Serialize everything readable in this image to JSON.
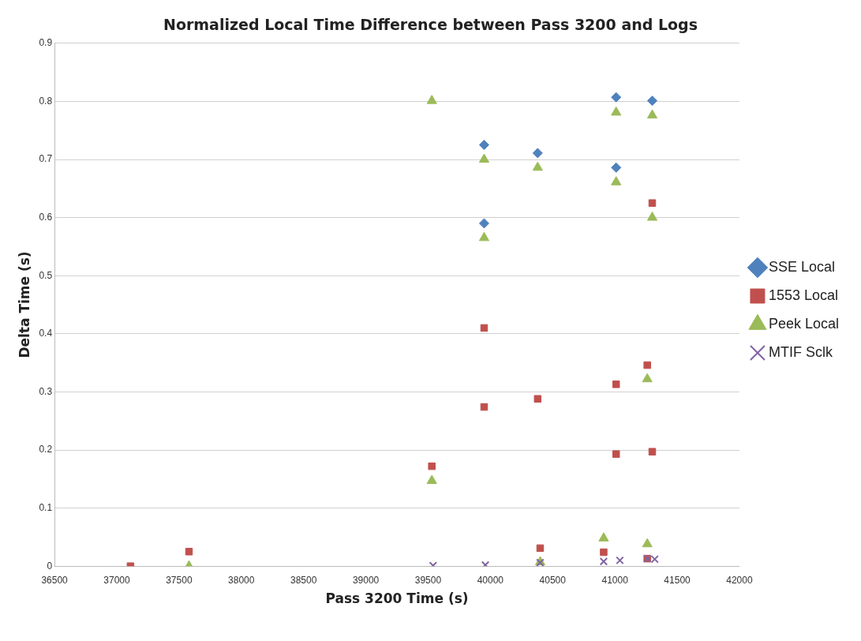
{
  "chart_data": {
    "type": "scatter",
    "title": "Normalized Local Time Difference between Pass 3200 and Logs",
    "xlabel": "Pass 3200 Time (s)",
    "ylabel": "Delta Time (s)",
    "xlim": [
      36500,
      42000
    ],
    "xticks": [
      36500,
      37000,
      37500,
      38000,
      38500,
      39000,
      39500,
      40000,
      40500,
      41000,
      41500,
      42000
    ],
    "ylim": [
      0,
      0.9
    ],
    "yticks": [
      0,
      0.1,
      0.2,
      0.3,
      0.4,
      0.5,
      0.6,
      0.7,
      0.8,
      0.9
    ],
    "grid": "y",
    "legend": "right",
    "series": [
      {
        "name": "SSE Local",
        "color": "#4f81bd",
        "marker": "diamond",
        "x": [
          39950,
          39950,
          40380,
          41010,
          41010,
          41300
        ],
        "values": [
          0.725,
          0.59,
          0.711,
          0.807,
          0.686,
          0.801
        ]
      },
      {
        "name": "1553 Local",
        "color": "#c0504d",
        "marker": "square",
        "x": [
          37110,
          37580,
          39530,
          39950,
          39950,
          40380,
          40400,
          40910,
          41010,
          41010,
          41260,
          41260,
          41300,
          41300
        ],
        "values": [
          0,
          0.025,
          0.172,
          0.41,
          0.274,
          0.288,
          0.031,
          0.024,
          0.313,
          0.193,
          0.346,
          0.013,
          0.625,
          0.197
        ]
      },
      {
        "name": "Peek Local",
        "color": "#9bbb59",
        "marker": "triangle",
        "x": [
          37580,
          39530,
          39530,
          39950,
          39950,
          40380,
          40400,
          40910,
          41010,
          41010,
          41260,
          41260,
          41300,
          41300
        ],
        "values": [
          0,
          0.147,
          0.801,
          0.7,
          0.565,
          0.686,
          0.007,
          0.048,
          0.781,
          0.661,
          0.322,
          0.038,
          0.776,
          0.6
        ]
      },
      {
        "name": "MTIF Sclk",
        "color": "#8064a2",
        "marker": "cross",
        "x": [
          39540,
          39960,
          40400,
          40910,
          41040,
          41260,
          41320
        ],
        "values": [
          0.001,
          0.002,
          0.006,
          0.008,
          0.01,
          0.013,
          0.012
        ]
      }
    ]
  }
}
